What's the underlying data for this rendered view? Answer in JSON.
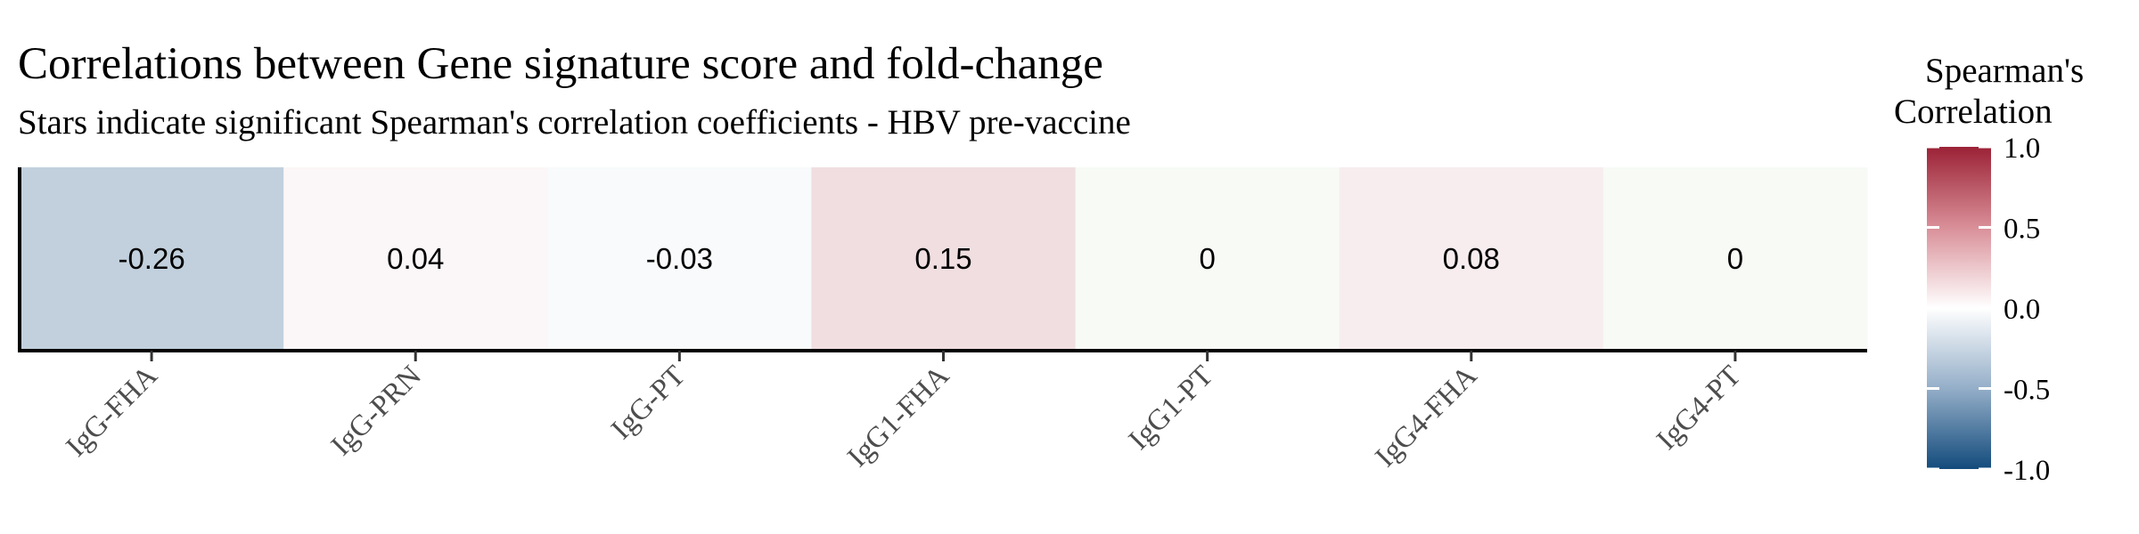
{
  "chart_data": {
    "type": "heatmap",
    "title": "Correlations between Gene signature score and fold-change",
    "subtitle": "Stars indicate significant Spearman's correlation coefficients - HBV pre-vaccine",
    "categories": [
      "IgG-FHA",
      "IgG-PRN",
      "IgG-PT",
      "IgG1-FHA",
      "IgG1-PT",
      "IgG4-FHA",
      "IgG4-PT"
    ],
    "values": [
      -0.26,
      0.04,
      -0.03,
      0.15,
      0,
      0.08,
      0
    ],
    "value_labels": [
      "-0.26",
      "0.04",
      "-0.03",
      "0.15",
      "0",
      "0.08",
      "0"
    ],
    "color_scale": {
      "limits": [
        -1.0,
        1.0
      ],
      "low": "#134b7c",
      "mid": "#ffffff",
      "high": "#9b2236"
    },
    "legend": {
      "title_lines": [
        "Spearman's",
        "Correlation"
      ],
      "ticks": [
        1.0,
        0.5,
        0.0,
        -0.5,
        -1.0
      ],
      "tick_labels": [
        "1.0",
        "0.5",
        "0.0",
        "-0.5",
        "-1.0"
      ],
      "position": "right"
    },
    "grid": false
  }
}
